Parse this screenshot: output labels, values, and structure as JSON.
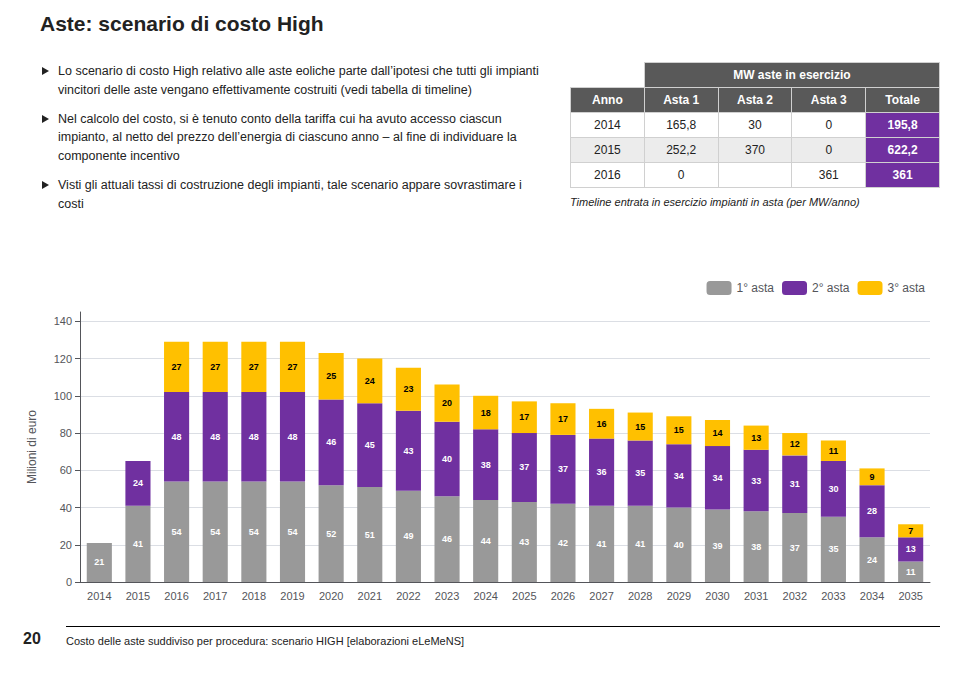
{
  "chart_data": {
    "type": "bar",
    "title": "Aste: scenario di costo High",
    "categories": [
      "2014",
      "2015",
      "2016",
      "2017",
      "2018",
      "2019",
      "2020",
      "2021",
      "2022",
      "2023",
      "2024",
      "2025",
      "2026",
      "2027",
      "2028",
      "2029",
      "2030",
      "2031",
      "2032",
      "2033",
      "2034",
      "2035"
    ],
    "series": [
      {
        "name": "1° asta",
        "color": "#999999",
        "values": [
          21,
          41,
          54,
          54,
          54,
          54,
          52,
          51,
          49,
          46,
          44,
          43,
          42,
          41,
          41,
          40,
          39,
          38,
          37,
          35,
          24,
          11
        ]
      },
      {
        "name": "2° asta",
        "color": "#7030A0",
        "values": [
          0,
          24,
          48,
          48,
          48,
          48,
          46,
          45,
          43,
          40,
          38,
          37,
          37,
          36,
          35,
          34,
          34,
          33,
          31,
          30,
          28,
          13
        ]
      },
      {
        "name": "3° asta",
        "color": "#FFC000",
        "values": [
          0,
          0,
          27,
          27,
          27,
          27,
          25,
          24,
          23,
          20,
          18,
          17,
          17,
          16,
          15,
          15,
          14,
          13,
          12,
          11,
          9,
          7
        ]
      }
    ],
    "ylabel": "Milioni di euro",
    "ylim": [
      0,
      145
    ],
    "yticks": [
      0,
      20,
      40,
      60,
      80,
      100,
      120,
      140
    ],
    "grid": true,
    "legend": "upper right",
    "stacked": true,
    "data_labels": true,
    "annotations": [
      "Lo scenario di costo High relativo alle aste eoliche parte dall’ipotesi che tutti gli impianti vincitori delle aste vengano effettivamente costruiti (vedi tabella di timeline)",
      "Nel calcolo del costo, si è tenuto conto della tariffa cui ha avuto accesso ciascun impianto, al netto del prezzo dell’energia di ciascuno anno – al fine di individuare la componente incentivo",
      "Visti gli attuali tassi di costruzione degli impianti, tale scenario appare sovrastimare i costi"
    ],
    "table": {
      "title": "MW aste in esercizio",
      "columns": [
        "Anno",
        "Asta 1",
        "Asta 2",
        "Asta 3",
        "Totale"
      ],
      "rows": [
        [
          "2014",
          "165,8",
          "30",
          "0",
          "195,8"
        ],
        [
          "2015",
          "252,2",
          "370",
          "0",
          "622,2"
        ],
        [
          "2016",
          "0",
          null,
          "361",
          "361"
        ]
      ],
      "note": "Timeline entrata in esercizio impianti in asta (per MW/anno)",
      "header_color": "#595959",
      "total_color": "#7030A0"
    },
    "footnote": "Costo delle aste suddiviso per procedura: scenario HIGH [elaborazioni eLeMeNS]",
    "page_number": "20"
  }
}
